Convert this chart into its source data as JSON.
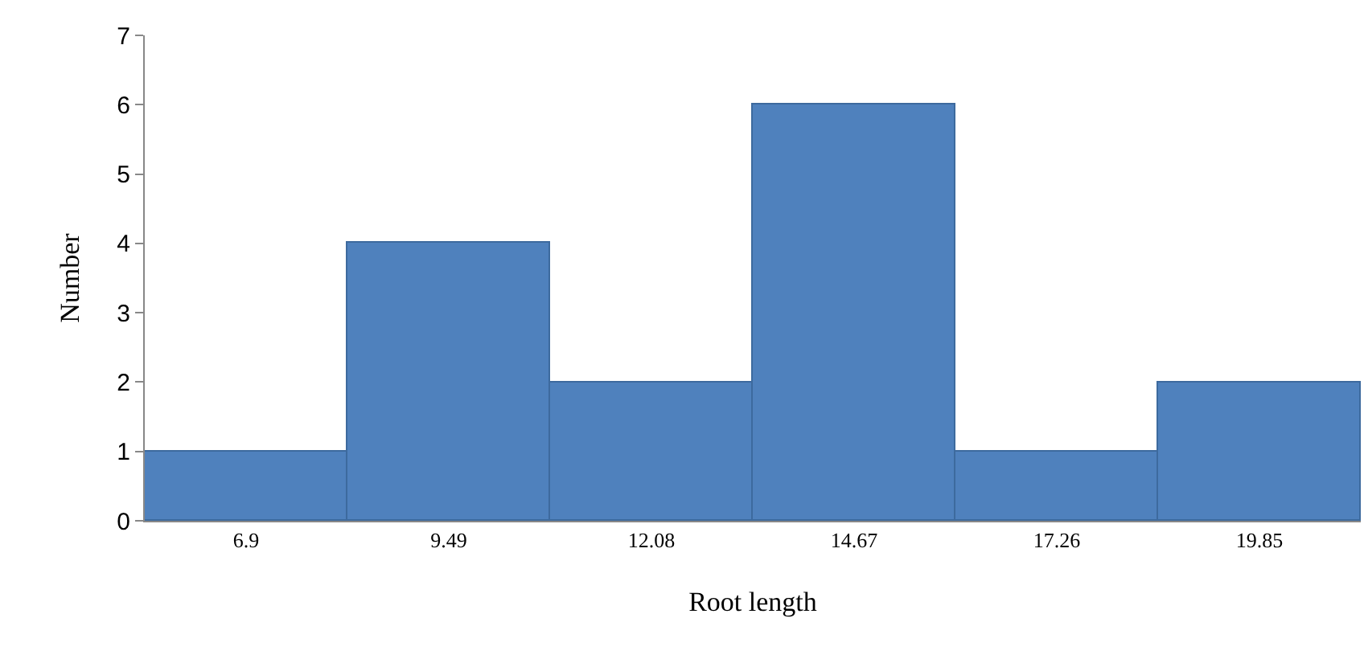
{
  "chart_data": {
    "type": "bar",
    "xlabel": "Root length",
    "ylabel": "Number",
    "categories": [
      "6.9",
      "9.49",
      "12.08",
      "14.67",
      "17.26",
      "19.85"
    ],
    "values": [
      1,
      4,
      2,
      6,
      1,
      2
    ],
    "color": "#4f81bd",
    "ylim": [
      0,
      7
    ],
    "yticks": [
      0,
      1,
      2,
      3,
      4,
      5,
      6,
      7
    ],
    "grid": false,
    "legend": false
  }
}
